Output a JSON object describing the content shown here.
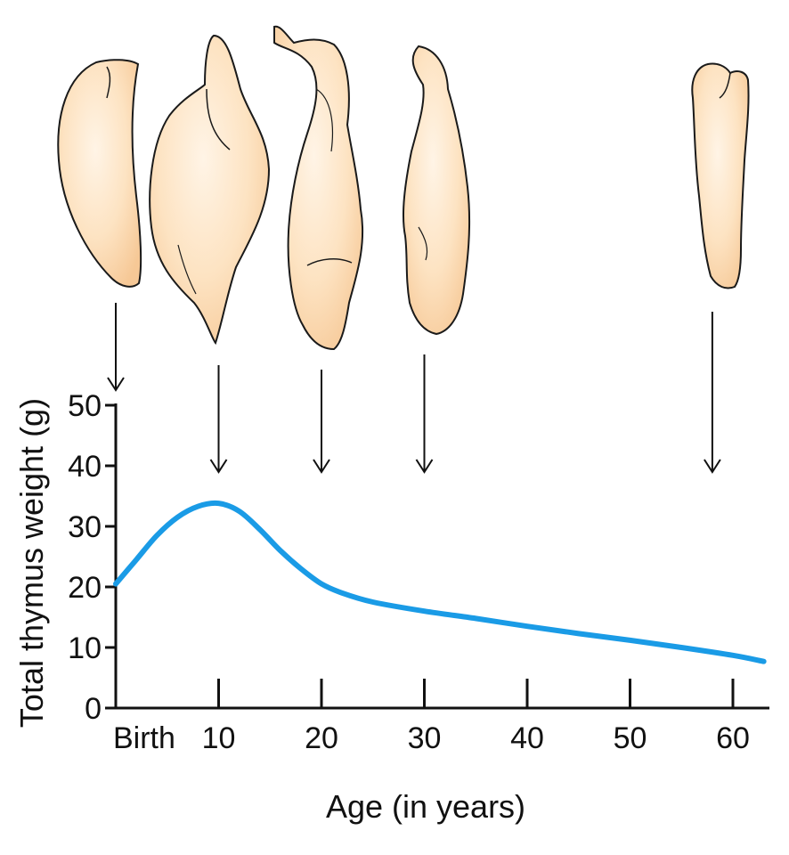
{
  "chart_data": {
    "type": "line",
    "xlabel": "Age (in years)",
    "ylabel": "Total thymus weight (g)",
    "xlim": [
      0,
      63
    ],
    "ylim": [
      0,
      50
    ],
    "x_ticks": [
      {
        "value": 0,
        "label": "Birth"
      },
      {
        "value": 10,
        "label": "10"
      },
      {
        "value": 20,
        "label": "20"
      },
      {
        "value": 30,
        "label": "30"
      },
      {
        "value": 40,
        "label": "40"
      },
      {
        "value": 50,
        "label": "50"
      },
      {
        "value": 60,
        "label": "60"
      }
    ],
    "y_ticks": [
      {
        "value": 0,
        "label": "0"
      },
      {
        "value": 10,
        "label": "10"
      },
      {
        "value": 20,
        "label": "20"
      },
      {
        "value": 30,
        "label": "30"
      },
      {
        "value": 40,
        "label": "40"
      },
      {
        "value": 50,
        "label": "50"
      }
    ],
    "series": [
      {
        "color": "#1a9be6",
        "x": [
          0,
          2,
          4,
          6,
          8,
          10,
          12,
          14,
          16,
          18,
          20,
          22,
          25,
          30,
          35,
          40,
          45,
          50,
          55,
          60,
          63
        ],
        "y": [
          20.5,
          24.5,
          28.5,
          31.5,
          33.3,
          33.8,
          32.5,
          29.5,
          26,
          23,
          20.5,
          19,
          17.5,
          16,
          14.8,
          13.5,
          12.3,
          11.2,
          10,
          8.7,
          7.7
        ]
      }
    ],
    "arrow_ages": [
      0,
      10,
      20,
      30,
      58
    ],
    "illustration": "thymus gland drawings at each arrowed age",
    "gland_color": "#fcdcb4",
    "grid": false
  }
}
